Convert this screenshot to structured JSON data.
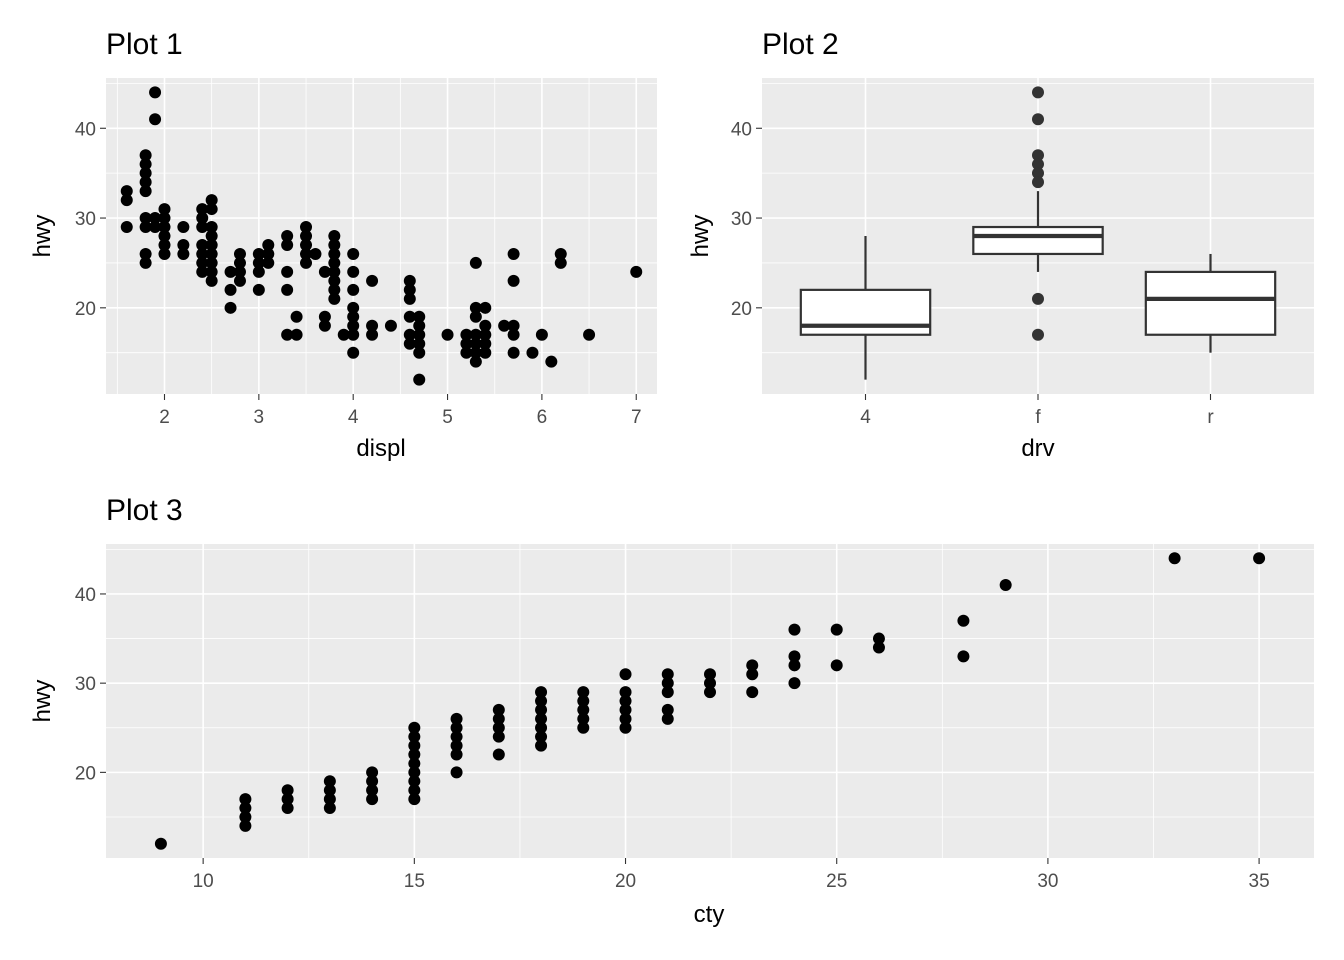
{
  "chart_data": [
    {
      "type": "scatter",
      "title": "Plot 1",
      "xlabel": "displ",
      "ylabel": "hwy",
      "xlim": [
        1.38,
        7.22
      ],
      "ylim": [
        10.4,
        45.6
      ],
      "xticks": [
        2,
        3,
        4,
        5,
        6,
        7
      ],
      "yticks": [
        20,
        30,
        40
      ],
      "xtick_labels": [
        "2",
        "3",
        "4",
        "5",
        "6",
        "7"
      ],
      "ytick_labels": [
        "20",
        "30",
        "40"
      ],
      "grid": true,
      "points": [
        [
          1.6,
          33
        ],
        [
          1.6,
          32
        ],
        [
          1.6,
          29
        ],
        [
          1.8,
          37
        ],
        [
          1.8,
          36
        ],
        [
          1.8,
          35
        ],
        [
          1.8,
          34
        ],
        [
          1.8,
          33
        ],
        [
          1.8,
          30
        ],
        [
          1.8,
          29
        ],
        [
          1.8,
          26
        ],
        [
          1.8,
          25
        ],
        [
          1.9,
          44
        ],
        [
          1.9,
          41
        ],
        [
          1.9,
          30
        ],
        [
          1.9,
          29
        ],
        [
          2.0,
          31
        ],
        [
          2.0,
          30
        ],
        [
          2.0,
          29
        ],
        [
          2.0,
          28
        ],
        [
          2.0,
          27
        ],
        [
          2.0,
          26
        ],
        [
          2.2,
          29
        ],
        [
          2.2,
          27
        ],
        [
          2.2,
          26
        ],
        [
          2.4,
          31
        ],
        [
          2.4,
          30
        ],
        [
          2.4,
          29
        ],
        [
          2.4,
          27
        ],
        [
          2.4,
          26
        ],
        [
          2.4,
          25
        ],
        [
          2.4,
          24
        ],
        [
          2.5,
          32
        ],
        [
          2.5,
          31
        ],
        [
          2.5,
          29
        ],
        [
          2.5,
          28
        ],
        [
          2.5,
          27
        ],
        [
          2.5,
          26
        ],
        [
          2.5,
          25
        ],
        [
          2.5,
          24
        ],
        [
          2.5,
          23
        ],
        [
          2.7,
          24
        ],
        [
          2.7,
          22
        ],
        [
          2.7,
          20
        ],
        [
          2.8,
          26
        ],
        [
          2.8,
          25
        ],
        [
          2.8,
          24
        ],
        [
          2.8,
          23
        ],
        [
          3.0,
          26
        ],
        [
          3.0,
          25
        ],
        [
          3.0,
          24
        ],
        [
          3.0,
          22
        ],
        [
          3.1,
          27
        ],
        [
          3.1,
          26
        ],
        [
          3.1,
          25
        ],
        [
          3.3,
          28
        ],
        [
          3.3,
          27
        ],
        [
          3.3,
          24
        ],
        [
          3.3,
          22
        ],
        [
          3.3,
          17
        ],
        [
          3.4,
          19
        ],
        [
          3.4,
          17
        ],
        [
          3.5,
          29
        ],
        [
          3.5,
          28
        ],
        [
          3.5,
          27
        ],
        [
          3.5,
          26
        ],
        [
          3.5,
          25
        ],
        [
          3.6,
          26
        ],
        [
          3.7,
          24
        ],
        [
          3.7,
          19
        ],
        [
          3.7,
          18
        ],
        [
          3.8,
          28
        ],
        [
          3.8,
          27
        ],
        [
          3.8,
          26
        ],
        [
          3.8,
          25
        ],
        [
          3.8,
          24
        ],
        [
          3.8,
          23
        ],
        [
          3.8,
          22
        ],
        [
          3.8,
          21
        ],
        [
          3.9,
          17
        ],
        [
          4.0,
          26
        ],
        [
          4.0,
          24
        ],
        [
          4.0,
          22
        ],
        [
          4.0,
          20
        ],
        [
          4.0,
          19
        ],
        [
          4.0,
          18
        ],
        [
          4.0,
          17
        ],
        [
          4.0,
          15
        ],
        [
          4.2,
          23
        ],
        [
          4.2,
          18
        ],
        [
          4.2,
          17
        ],
        [
          4.4,
          18
        ],
        [
          4.6,
          23
        ],
        [
          4.6,
          22
        ],
        [
          4.6,
          21
        ],
        [
          4.6,
          19
        ],
        [
          4.6,
          17
        ],
        [
          4.6,
          16
        ],
        [
          4.7,
          19
        ],
        [
          4.7,
          18
        ],
        [
          4.7,
          17
        ],
        [
          4.7,
          16
        ],
        [
          4.7,
          15
        ],
        [
          4.7,
          12
        ],
        [
          5.0,
          17
        ],
        [
          5.2,
          17
        ],
        [
          5.2,
          16
        ],
        [
          5.2,
          15
        ],
        [
          5.3,
          25
        ],
        [
          5.3,
          20
        ],
        [
          5.3,
          19
        ],
        [
          5.3,
          17
        ],
        [
          5.3,
          16
        ],
        [
          5.3,
          15
        ],
        [
          5.3,
          14
        ],
        [
          5.4,
          20
        ],
        [
          5.4,
          18
        ],
        [
          5.4,
          17
        ],
        [
          5.4,
          16
        ],
        [
          5.4,
          15
        ],
        [
          5.6,
          18
        ],
        [
          5.7,
          26
        ],
        [
          5.7,
          23
        ],
        [
          5.7,
          18
        ],
        [
          5.7,
          17
        ],
        [
          5.7,
          15
        ],
        [
          5.9,
          15
        ],
        [
          6.0,
          17
        ],
        [
          6.1,
          14
        ],
        [
          6.2,
          26
        ],
        [
          6.2,
          25
        ],
        [
          6.5,
          17
        ],
        [
          7.0,
          24
        ]
      ]
    },
    {
      "type": "box",
      "title": "Plot 2",
      "xlabel": "drv",
      "ylabel": "hwy",
      "ylim": [
        10.4,
        45.6
      ],
      "yticks": [
        20,
        30,
        40
      ],
      "ytick_labels": [
        "20",
        "30",
        "40"
      ],
      "categories": [
        "4",
        "f",
        "r"
      ],
      "grid": true,
      "boxes": [
        {
          "q1": 17,
          "median": 18,
          "q3": 22,
          "whisker_low": 12,
          "whisker_high": 28,
          "outliers": []
        },
        {
          "q1": 26,
          "median": 28,
          "q3": 29,
          "whisker_low": 24,
          "whisker_high": 33,
          "outliers": [
            44,
            41,
            37,
            36,
            35,
            34,
            21,
            17
          ]
        },
        {
          "q1": 17,
          "median": 21,
          "q3": 24,
          "whisker_low": 15,
          "whisker_high": 26,
          "outliers": []
        }
      ]
    },
    {
      "type": "scatter",
      "title": "Plot 3",
      "xlabel": "cty",
      "ylabel": "hwy",
      "xlim": [
        7.7,
        36.3
      ],
      "ylim": [
        10.4,
        45.6
      ],
      "xticks": [
        10,
        15,
        20,
        25,
        30,
        35
      ],
      "yticks": [
        20,
        30,
        40
      ],
      "xtick_labels": [
        "10",
        "15",
        "20",
        "25",
        "30",
        "35"
      ],
      "ytick_labels": [
        "20",
        "30",
        "40"
      ],
      "grid": true,
      "points": [
        [
          9,
          12
        ],
        [
          11,
          17
        ],
        [
          11,
          16
        ],
        [
          11,
          15
        ],
        [
          11,
          14
        ],
        [
          12,
          18
        ],
        [
          12,
          17
        ],
        [
          12,
          16
        ],
        [
          13,
          19
        ],
        [
          13,
          18
        ],
        [
          13,
          17
        ],
        [
          13,
          16
        ],
        [
          14,
          20
        ],
        [
          14,
          19
        ],
        [
          14,
          18
        ],
        [
          14,
          17
        ],
        [
          15,
          25
        ],
        [
          15,
          24
        ],
        [
          15,
          23
        ],
        [
          15,
          22
        ],
        [
          15,
          21
        ],
        [
          15,
          20
        ],
        [
          15,
          19
        ],
        [
          15,
          18
        ],
        [
          15,
          17
        ],
        [
          16,
          26
        ],
        [
          16,
          25
        ],
        [
          16,
          24
        ],
        [
          16,
          23
        ],
        [
          16,
          22
        ],
        [
          16,
          20
        ],
        [
          17,
          27
        ],
        [
          17,
          26
        ],
        [
          17,
          25
        ],
        [
          17,
          24
        ],
        [
          17,
          22
        ],
        [
          18,
          29
        ],
        [
          18,
          28
        ],
        [
          18,
          27
        ],
        [
          18,
          26
        ],
        [
          18,
          25
        ],
        [
          18,
          24
        ],
        [
          18,
          23
        ],
        [
          19,
          29
        ],
        [
          19,
          28
        ],
        [
          19,
          27
        ],
        [
          19,
          26
        ],
        [
          19,
          25
        ],
        [
          20,
          31
        ],
        [
          20,
          29
        ],
        [
          20,
          28
        ],
        [
          20,
          27
        ],
        [
          20,
          26
        ],
        [
          20,
          25
        ],
        [
          21,
          31
        ],
        [
          21,
          30
        ],
        [
          21,
          29
        ],
        [
          21,
          27
        ],
        [
          21,
          26
        ],
        [
          22,
          31
        ],
        [
          22,
          30
        ],
        [
          22,
          29
        ],
        [
          23,
          32
        ],
        [
          23,
          31
        ],
        [
          23,
          29
        ],
        [
          24,
          36
        ],
        [
          24,
          33
        ],
        [
          24,
          32
        ],
        [
          24,
          30
        ],
        [
          25,
          36
        ],
        [
          25,
          32
        ],
        [
          26,
          35
        ],
        [
          26,
          34
        ],
        [
          28,
          37
        ],
        [
          28,
          33
        ],
        [
          29,
          41
        ],
        [
          33,
          44
        ],
        [
          35,
          44
        ]
      ]
    }
  ]
}
